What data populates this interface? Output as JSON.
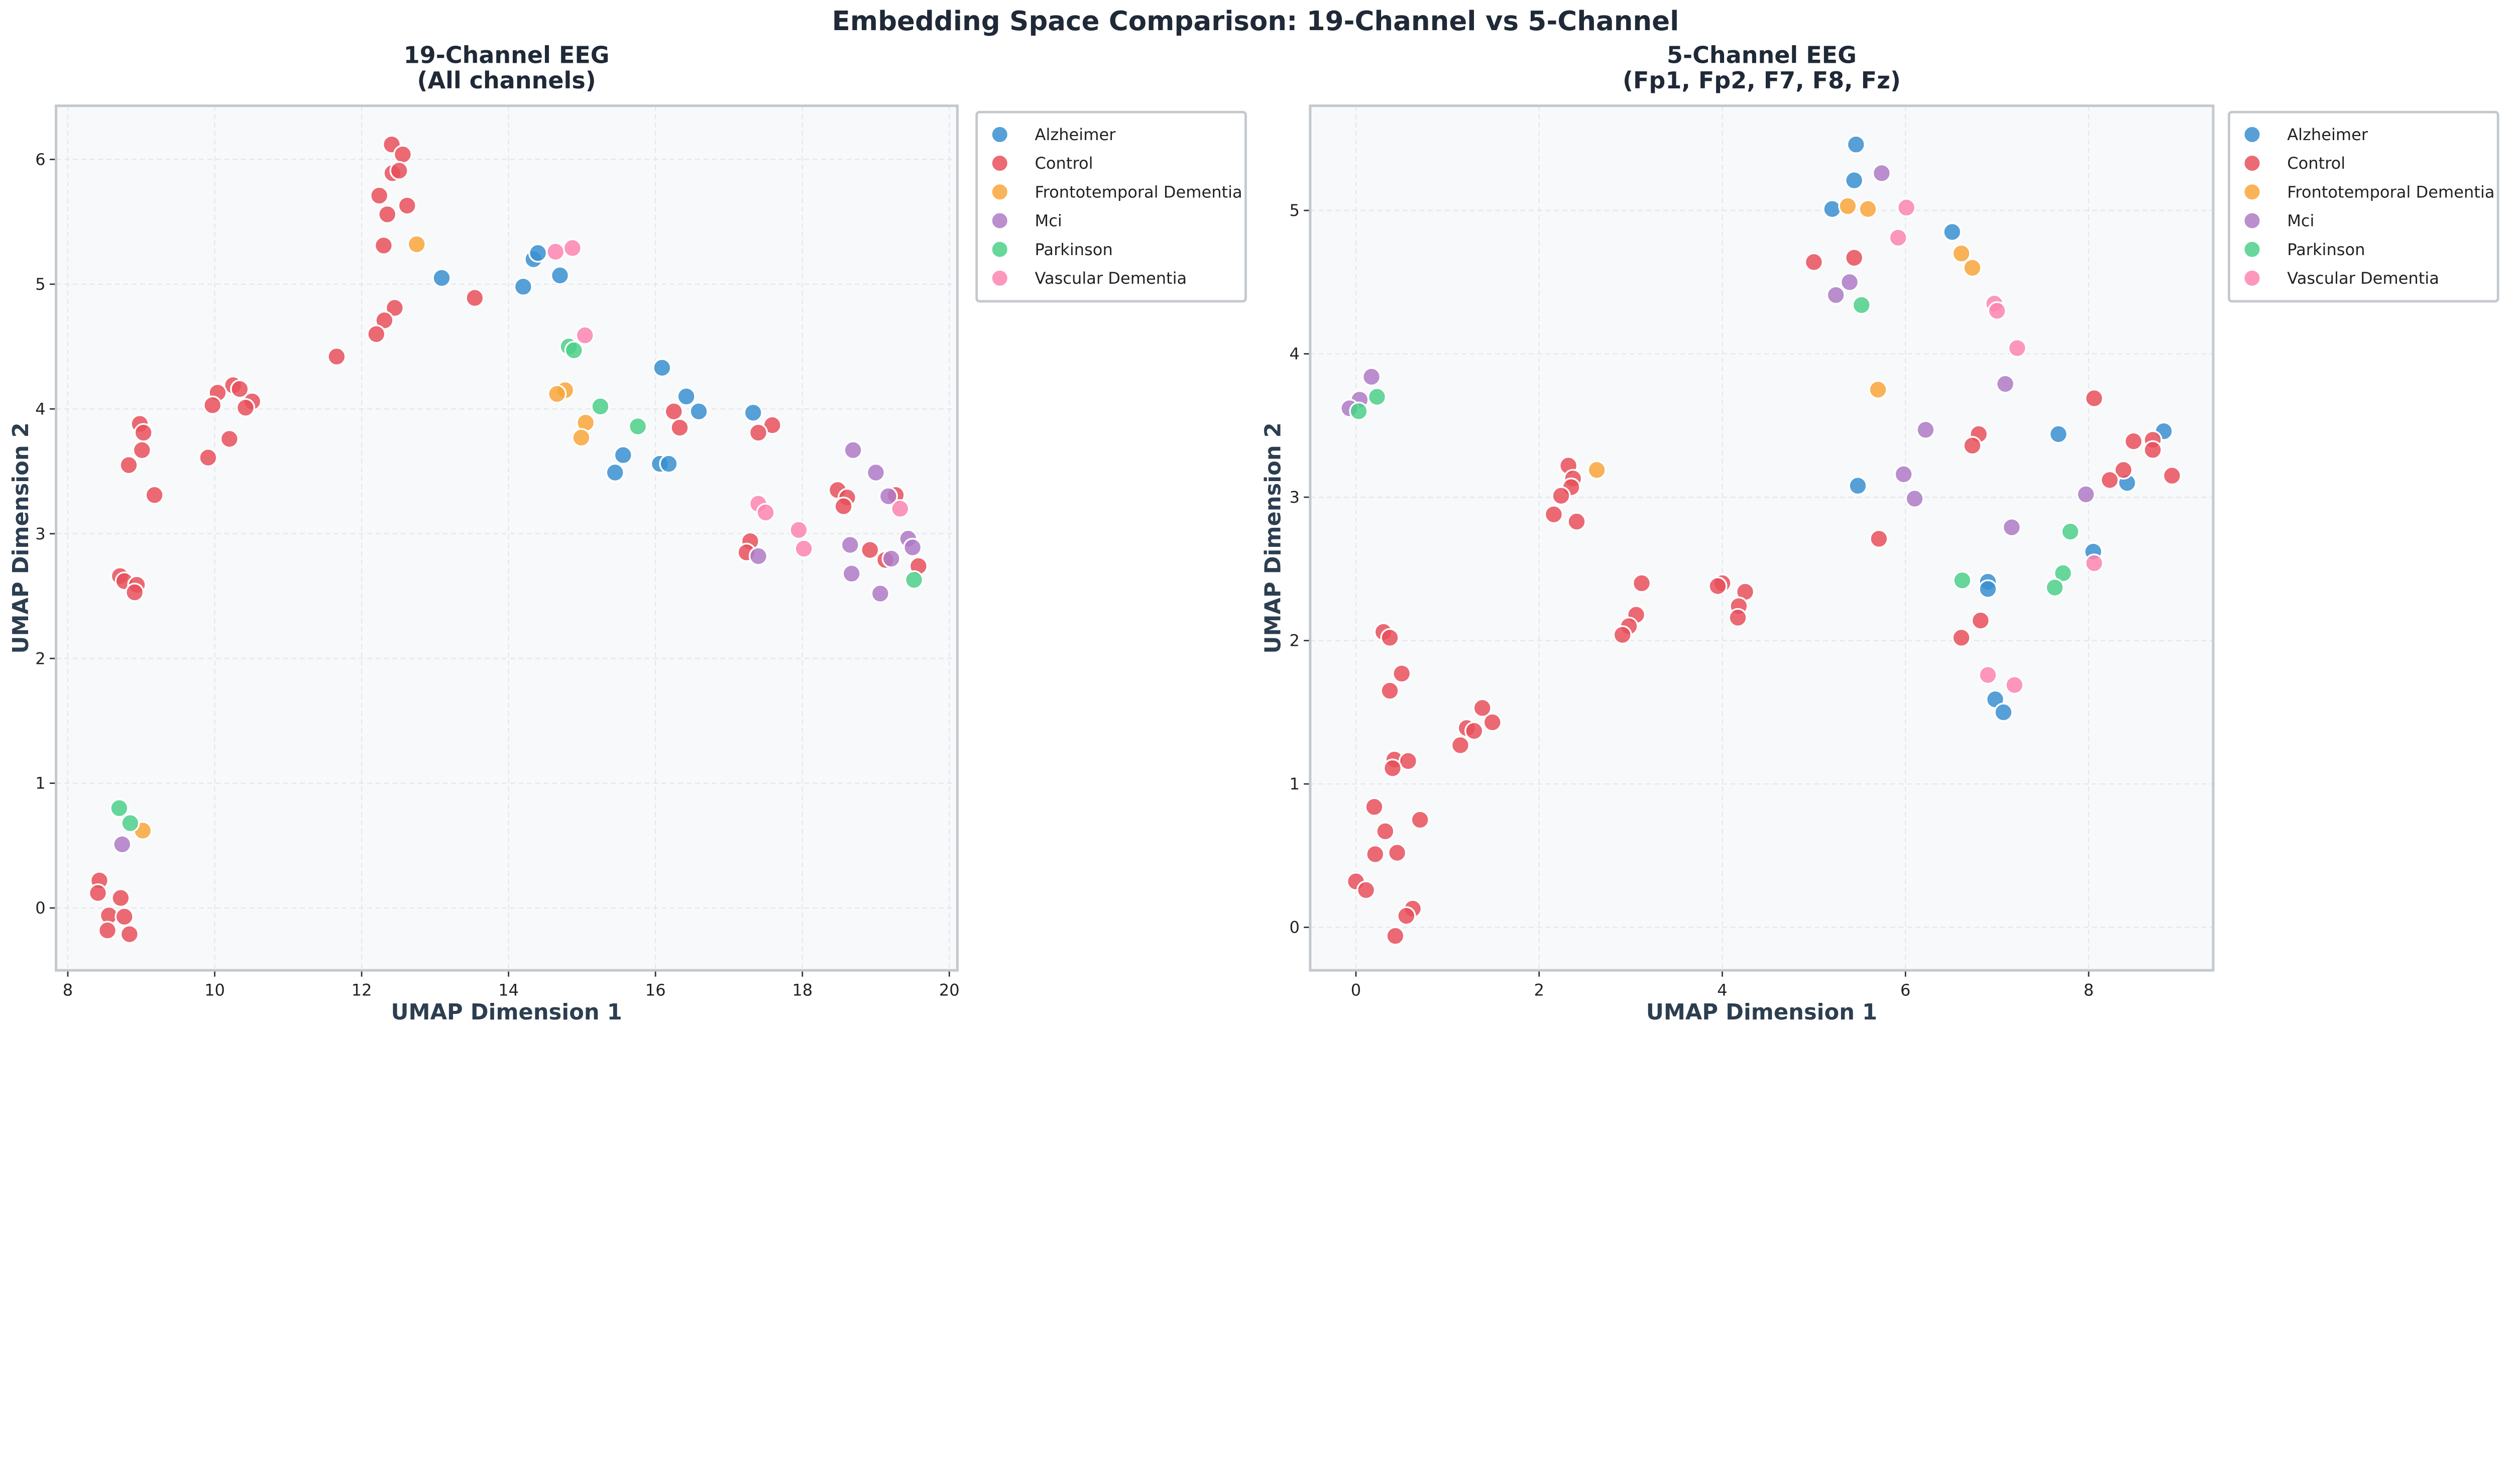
{
  "title": "Embedding Space Comparison: 19-Channel vs 5-Channel",
  "colors": {
    "Alzheimer": "#3a8fd0",
    "Control": "#e8505b",
    "Frontotemporal Dementia": "#f9a63a",
    "Mci": "#af7ac5",
    "Parkinson": "#4cd08a",
    "Vascular Dementia": "#fd85b0"
  },
  "chart_data": [
    {
      "type": "scatter",
      "title_line1": "19-Channel EEG",
      "title_line2": "(All channels)",
      "xlabel": "UMAP Dimension 1",
      "ylabel": "UMAP Dimension 2",
      "xlim": [
        7.84,
        20.11
      ],
      "ylim": [
        -0.5,
        6.43
      ],
      "xticks": [
        "8",
        "10",
        "12",
        "14",
        "16",
        "18",
        "20"
      ],
      "yticks": [
        "0",
        "1",
        "2",
        "3",
        "4",
        "5",
        "6"
      ],
      "grid": true,
      "legend_placement": "outside-right-top",
      "series": [
        {
          "name": "Alzheimer",
          "points": [
            [
              13.09,
              5.05
            ],
            [
              14.2,
              4.98
            ],
            [
              14.34,
              5.2
            ],
            [
              14.4,
              5.25
            ],
            [
              14.7,
              5.07
            ],
            [
              16.09,
              4.33
            ],
            [
              16.42,
              4.1
            ],
            [
              16.59,
              3.98
            ],
            [
              17.33,
              3.97
            ],
            [
              15.56,
              3.63
            ],
            [
              15.45,
              3.49
            ],
            [
              16.06,
              3.56
            ],
            [
              16.18,
              3.56
            ]
          ]
        },
        {
          "name": "Control",
          "points": [
            [
              12.41,
              6.12
            ],
            [
              12.56,
              6.04
            ],
            [
              12.42,
              5.89
            ],
            [
              12.51,
              5.91
            ],
            [
              12.24,
              5.71
            ],
            [
              12.62,
              5.63
            ],
            [
              12.35,
              5.56
            ],
            [
              12.3,
              5.31
            ],
            [
              13.54,
              4.89
            ],
            [
              12.45,
              4.81
            ],
            [
              12.31,
              4.71
            ],
            [
              12.2,
              4.6
            ],
            [
              11.66,
              4.42
            ],
            [
              10.25,
              4.19
            ],
            [
              10.34,
              4.16
            ],
            [
              10.04,
              4.13
            ],
            [
              9.97,
              4.03
            ],
            [
              10.51,
              4.06
            ],
            [
              10.42,
              4.01
            ],
            [
              10.2,
              3.76
            ],
            [
              9.91,
              3.61
            ],
            [
              8.98,
              3.88
            ],
            [
              9.03,
              3.81
            ],
            [
              9.01,
              3.67
            ],
            [
              8.83,
              3.55
            ],
            [
              9.18,
              3.31
            ],
            [
              8.71,
              2.66
            ],
            [
              8.77,
              2.62
            ],
            [
              8.94,
              2.59
            ],
            [
              8.91,
              2.53
            ],
            [
              8.43,
              0.22
            ],
            [
              8.41,
              0.12
            ],
            [
              8.72,
              0.08
            ],
            [
              8.56,
              -0.06
            ],
            [
              8.77,
              -0.07
            ],
            [
              8.54,
              -0.18
            ],
            [
              8.84,
              -0.21
            ],
            [
              16.25,
              3.98
            ],
            [
              16.33,
              3.85
            ],
            [
              17.59,
              3.87
            ],
            [
              17.4,
              3.81
            ],
            [
              18.48,
              3.35
            ],
            [
              18.61,
              3.29
            ],
            [
              18.56,
              3.22
            ],
            [
              19.27,
              3.31
            ],
            [
              17.29,
              2.94
            ],
            [
              17.24,
              2.85
            ],
            [
              18.92,
              2.87
            ],
            [
              19.13,
              2.79
            ],
            [
              19.58,
              2.74
            ]
          ]
        },
        {
          "name": "Frontotemporal Dementia",
          "points": [
            [
              12.75,
              5.32
            ],
            [
              14.77,
              4.15
            ],
            [
              14.66,
              4.12
            ],
            [
              15.05,
              3.89
            ],
            [
              14.99,
              3.77
            ],
            [
              9.02,
              0.62
            ]
          ]
        },
        {
          "name": "Mci",
          "points": [
            [
              18.69,
              3.67
            ],
            [
              19.0,
              3.49
            ],
            [
              19.17,
              3.3
            ],
            [
              19.44,
              2.96
            ],
            [
              19.5,
              2.89
            ],
            [
              18.65,
              2.91
            ],
            [
              17.4,
              2.82
            ],
            [
              19.21,
              2.8
            ],
            [
              18.67,
              2.68
            ],
            [
              19.06,
              2.52
            ],
            [
              8.74,
              0.51
            ]
          ]
        },
        {
          "name": "Parkinson",
          "points": [
            [
              14.82,
              4.5
            ],
            [
              14.89,
              4.47
            ],
            [
              15.25,
              4.02
            ],
            [
              15.76,
              3.86
            ],
            [
              19.52,
              2.63
            ],
            [
              8.7,
              0.8
            ],
            [
              8.85,
              0.68
            ]
          ]
        },
        {
          "name": "Vascular Dementia",
          "points": [
            [
              14.64,
              5.26
            ],
            [
              14.87,
              5.29
            ],
            [
              15.04,
              4.59
            ],
            [
              17.4,
              3.24
            ],
            [
              17.5,
              3.17
            ],
            [
              17.95,
              3.03
            ],
            [
              18.02,
              2.88
            ],
            [
              19.33,
              3.2
            ]
          ]
        }
      ]
    },
    {
      "type": "scatter",
      "title_line1": "5-Channel EEG",
      "title_line2": "(Fp1, Fp2, F7, F8, Fz)",
      "xlabel": "UMAP Dimension 1",
      "ylabel": "UMAP Dimension 2",
      "xlim": [
        -0.5,
        9.36
      ],
      "ylim": [
        -0.3,
        5.73
      ],
      "xticks": [
        "0",
        "2",
        "4",
        "6",
        "8"
      ],
      "yticks": [
        "0",
        "1",
        "2",
        "3",
        "4",
        "5"
      ],
      "grid": true,
      "legend_placement": "outside-right-top",
      "series": [
        {
          "name": "Alzheimer",
          "points": [
            [
              5.46,
              5.46
            ],
            [
              5.44,
              5.21
            ],
            [
              5.2,
              5.01
            ],
            [
              6.51,
              4.85
            ],
            [
              7.67,
              3.44
            ],
            [
              8.82,
              3.46
            ],
            [
              5.48,
              3.08
            ],
            [
              8.42,
              3.1
            ],
            [
              8.05,
              2.62
            ],
            [
              6.9,
              2.41
            ],
            [
              6.9,
              2.36
            ],
            [
              6.98,
              1.59
            ],
            [
              7.07,
              1.5
            ]
          ]
        },
        {
          "name": "Control",
          "points": [
            [
              5.0,
              4.64
            ],
            [
              5.44,
              4.67
            ],
            [
              8.06,
              3.69
            ],
            [
              6.8,
              3.44
            ],
            [
              6.73,
              3.36
            ],
            [
              8.49,
              3.39
            ],
            [
              8.7,
              3.4
            ],
            [
              8.7,
              3.33
            ],
            [
              8.38,
              3.19
            ],
            [
              8.23,
              3.12
            ],
            [
              8.91,
              3.15
            ],
            [
              2.32,
              3.22
            ],
            [
              2.37,
              3.13
            ],
            [
              2.35,
              3.07
            ],
            [
              2.24,
              3.01
            ],
            [
              2.16,
              2.88
            ],
            [
              2.41,
              2.83
            ],
            [
              5.71,
              2.71
            ],
            [
              3.12,
              2.4
            ],
            [
              4.0,
              2.4
            ],
            [
              3.95,
              2.38
            ],
            [
              4.25,
              2.34
            ],
            [
              3.06,
              2.18
            ],
            [
              2.98,
              2.1
            ],
            [
              2.91,
              2.04
            ],
            [
              4.18,
              2.24
            ],
            [
              4.17,
              2.16
            ],
            [
              6.82,
              2.14
            ],
            [
              6.61,
              2.02
            ],
            [
              0.3,
              2.06
            ],
            [
              0.37,
              2.02
            ],
            [
              0.5,
              1.77
            ],
            [
              0.37,
              1.65
            ],
            [
              1.38,
              1.53
            ],
            [
              1.49,
              1.43
            ],
            [
              1.21,
              1.39
            ],
            [
              1.29,
              1.37
            ],
            [
              1.14,
              1.27
            ],
            [
              0.42,
              1.17
            ],
            [
              0.57,
              1.16
            ],
            [
              0.4,
              1.11
            ],
            [
              0.2,
              0.84
            ],
            [
              0.7,
              0.75
            ],
            [
              0.32,
              0.67
            ],
            [
              0.21,
              0.51
            ],
            [
              0.45,
              0.52
            ],
            [
              0.0,
              0.32
            ],
            [
              0.11,
              0.26
            ],
            [
              0.62,
              0.13
            ],
            [
              0.55,
              0.08
            ],
            [
              0.43,
              -0.06
            ]
          ]
        },
        {
          "name": "Frontotemporal Dementia",
          "points": [
            [
              5.37,
              5.03
            ],
            [
              5.59,
              5.01
            ],
            [
              6.61,
              4.7
            ],
            [
              6.73,
              4.6
            ],
            [
              5.7,
              3.75
            ],
            [
              2.63,
              3.19
            ]
          ]
        },
        {
          "name": "Mci",
          "points": [
            [
              5.74,
              5.26
            ],
            [
              5.39,
              4.5
            ],
            [
              5.24,
              4.41
            ],
            [
              0.17,
              3.84
            ],
            [
              0.04,
              3.68
            ],
            [
              -0.07,
              3.62
            ],
            [
              7.09,
              3.79
            ],
            [
              6.22,
              3.47
            ],
            [
              5.98,
              3.16
            ],
            [
              6.1,
              2.99
            ],
            [
              7.97,
              3.02
            ],
            [
              7.16,
              2.79
            ]
          ]
        },
        {
          "name": "Parkinson",
          "points": [
            [
              5.52,
              4.34
            ],
            [
              0.23,
              3.7
            ],
            [
              0.03,
              3.6
            ],
            [
              7.8,
              2.76
            ],
            [
              7.72,
              2.47
            ],
            [
              6.62,
              2.42
            ],
            [
              7.63,
              2.37
            ]
          ]
        },
        {
          "name": "Vascular Dementia",
          "points": [
            [
              6.01,
              5.02
            ],
            [
              5.92,
              4.81
            ],
            [
              6.97,
              4.35
            ],
            [
              7.0,
              4.3
            ],
            [
              7.22,
              4.04
            ],
            [
              8.06,
              2.54
            ],
            [
              6.9,
              1.76
            ],
            [
              7.19,
              1.69
            ]
          ]
        }
      ]
    }
  ]
}
